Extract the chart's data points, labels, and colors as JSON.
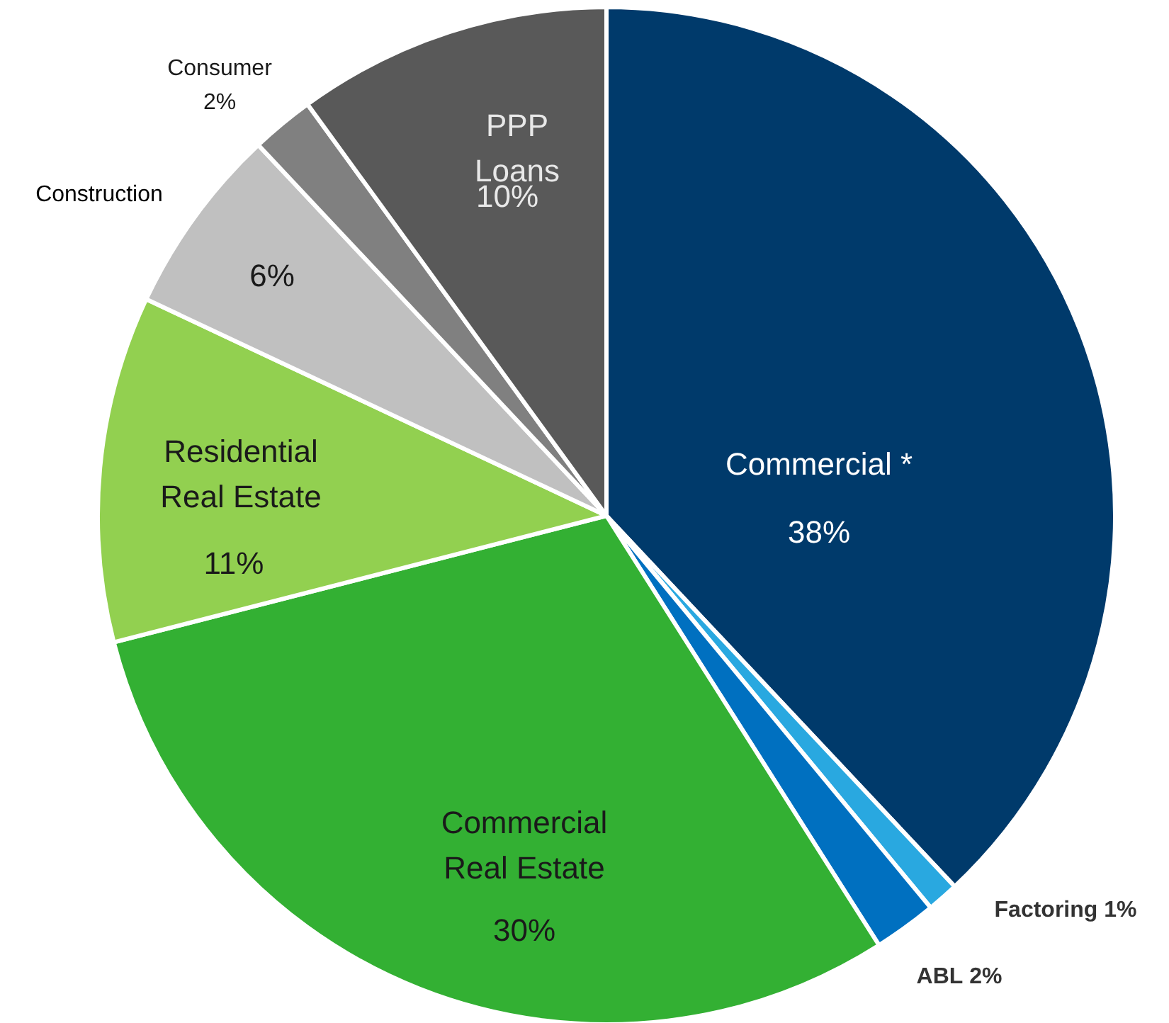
{
  "chart_data": {
    "type": "pie",
    "categories": [
      "Commercial *",
      "Factoring",
      "ABL",
      "Commercial Real Estate",
      "Residential Real Estate",
      "Construction",
      "Consumer",
      "PPP Loans"
    ],
    "values": [
      38,
      1,
      2,
      30,
      11,
      6,
      2,
      10
    ],
    "value_labels": [
      "38%",
      "1%",
      "2%",
      "30%",
      "11%",
      "6%",
      "2%",
      "10%"
    ],
    "colors": [
      "#003a6b",
      "#29a8e0",
      "#0070c0",
      "#33b033",
      "#92d050",
      "#c0c0c0",
      "#808080",
      "#595959"
    ]
  }
}
